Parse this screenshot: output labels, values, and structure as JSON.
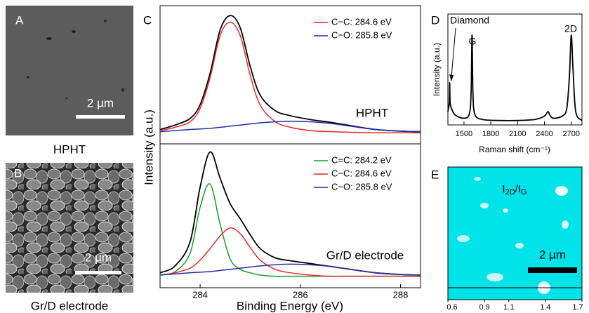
{
  "panels": {
    "a": {
      "letter": "A",
      "scale": "2 µm",
      "caption": "HPHT"
    },
    "b": {
      "letter": "B",
      "scale": "2 µm",
      "caption": "Gr/D electrode"
    },
    "e": {
      "letter": "E",
      "scale": "2 µm",
      "map_label": [
        "I",
        "2D",
        "/I",
        "G"
      ]
    }
  },
  "chart_data": [
    {
      "type": "line",
      "panel_label": "C",
      "ylabel": "Intensity (a.u.)",
      "annotation": "HPHT",
      "xlim": [
        283.2,
        288.4
      ],
      "ylim": [
        -0.1,
        1.15
      ],
      "x": [
        283.2,
        283.5,
        283.8,
        284,
        284.2,
        284.4,
        284.6,
        284.8,
        285,
        285.2,
        285.5,
        285.8,
        286.2,
        286.6,
        287,
        287.5,
        288,
        288.4
      ],
      "series": [
        {
          "name": null,
          "color": "#000000",
          "values": [
            0.03,
            0.07,
            0.13,
            0.255,
            0.54,
            0.93,
            1.06,
            0.95,
            0.6,
            0.34,
            0.2,
            0.155,
            0.12,
            0.095,
            0.065,
            0.03,
            0.015,
            0.01
          ]
        },
        {
          "name": "C−C: 284.6 eV",
          "color": "#e8282b",
          "values": [
            0.02,
            0.05,
            0.1,
            0.22,
            0.5,
            0.88,
            1.0,
            0.88,
            0.52,
            0.25,
            0.1,
            0.05,
            0.02,
            0.01,
            0.005,
            0,
            0,
            0
          ]
        },
        {
          "name": "C−O: 285.8 eV",
          "color": "#1f2f9f",
          "values": [
            0.01,
            0.02,
            0.03,
            0.035,
            0.04,
            0.05,
            0.06,
            0.07,
            0.08,
            0.09,
            0.1,
            0.105,
            0.1,
            0.085,
            0.06,
            0.03,
            0.015,
            0.01
          ]
        }
      ]
    },
    {
      "type": "line",
      "xlabel": "Binding Energy (eV)",
      "annotation": "Gr/D electrode",
      "xlim": [
        283.2,
        288.4
      ],
      "ylim": [
        -0.1,
        1.15
      ],
      "xticks": [
        284,
        286,
        288
      ],
      "x": [
        283.2,
        283.5,
        283.8,
        284,
        284.2,
        284.4,
        284.6,
        284.8,
        285,
        285.2,
        285.5,
        285.8,
        286.2,
        286.6,
        287,
        287.5,
        288,
        288.4
      ],
      "series": [
        {
          "name": null,
          "color": "#000000",
          "values": [
            0.03,
            0.09,
            0.3,
            0.775,
            1.08,
            0.85,
            0.63,
            0.5,
            0.36,
            0.24,
            0.16,
            0.135,
            0.11,
            0.085,
            0.06,
            0.03,
            0.015,
            0.01
          ]
        },
        {
          "name": "C=C: 284.2 eV",
          "color": "#1a9c2a",
          "values": [
            0.01,
            0.04,
            0.2,
            0.6,
            0.8,
            0.45,
            0.15,
            0.06,
            0.03,
            0.01,
            0,
            0,
            0,
            0,
            0,
            0,
            0,
            0
          ]
        },
        {
          "name": "C−C: 284.6 eV",
          "color": "#e8282b",
          "values": [
            0.01,
            0.03,
            0.07,
            0.14,
            0.24,
            0.35,
            0.42,
            0.37,
            0.25,
            0.14,
            0.06,
            0.03,
            0.01,
            0,
            0,
            0,
            0,
            0
          ]
        },
        {
          "name": "C−O: 285.8 eV",
          "color": "#1f2f9f",
          "values": [
            0.01,
            0.02,
            0.03,
            0.035,
            0.04,
            0.05,
            0.06,
            0.07,
            0.08,
            0.09,
            0.1,
            0.105,
            0.1,
            0.085,
            0.06,
            0.03,
            0.015,
            0.01
          ]
        }
      ]
    },
    {
      "type": "line",
      "panel_label": "D",
      "ylabel": "Intensity (a.u.)",
      "xlabel": "Raman shift (cm⁻¹)",
      "annotations": [
        "Diamond",
        "G",
        "2D"
      ],
      "xlim": [
        1320,
        2820
      ],
      "ylim": [
        0,
        1
      ],
      "xticks": [
        1500,
        1800,
        2100,
        2400,
        2700
      ],
      "x": [
        1320,
        1335,
        1340,
        1345,
        1360,
        1400,
        1500,
        1560,
        1580,
        1590,
        1600,
        1620,
        1700,
        1900,
        2100,
        2300,
        2400,
        2440,
        2460,
        2500,
        2600,
        2650,
        2680,
        2700,
        2720,
        2750,
        2820
      ],
      "series": [
        {
          "name": null,
          "color": "#000000",
          "values": [
            0.12,
            0.2,
            0.38,
            0.2,
            0.15,
            0.09,
            0.06,
            0.1,
            0.3,
            0.81,
            0.3,
            0.1,
            0.05,
            0.04,
            0.04,
            0.05,
            0.08,
            0.12,
            0.09,
            0.06,
            0.08,
            0.15,
            0.45,
            0.81,
            0.5,
            0.12,
            0.04
          ]
        }
      ]
    },
    {
      "type": "colorbar",
      "xlim": [
        0.6,
        1.7
      ],
      "xticks": [
        0.6,
        0.9,
        1.1,
        1.4,
        1.7
      ]
    }
  ]
}
